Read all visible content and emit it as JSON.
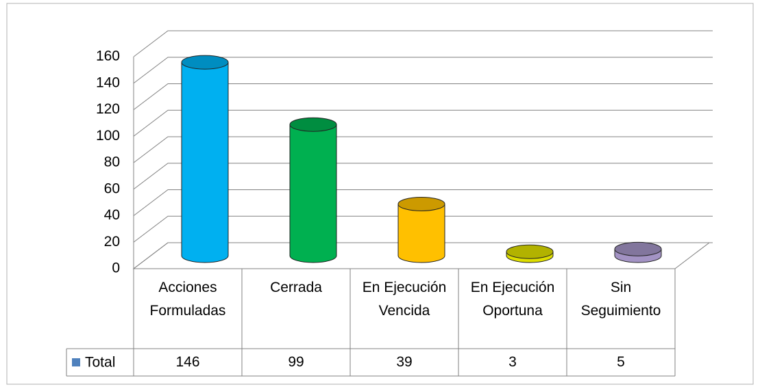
{
  "chart_data": {
    "type": "bar",
    "categories": [
      "Acciones Formuladas",
      "Cerrada",
      "En Ejecución Vencida",
      "En Ejecución Oportuna",
      "Sin Seguimiento"
    ],
    "series": [
      {
        "name": "Total",
        "color": "#4f81bd",
        "values": [
          146,
          99,
          39,
          3,
          5
        ]
      }
    ],
    "colors": [
      "#00b0f0",
      "#00b050",
      "#ffc000",
      "#dede00",
      "#a393c4"
    ],
    "ylim": [
      0,
      160
    ],
    "yticks": [
      0,
      20,
      40,
      60,
      80,
      100,
      120,
      140,
      160
    ],
    "grid": true
  }
}
